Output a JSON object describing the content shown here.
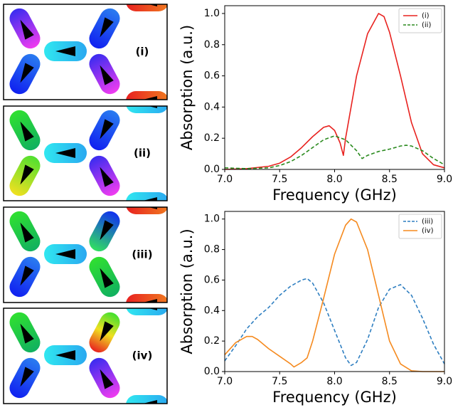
{
  "panels": [
    {
      "label": "(i)"
    },
    {
      "label": "(ii)"
    },
    {
      "label": "(iii)"
    },
    {
      "label": "(iv)"
    }
  ],
  "chart_data": [
    {
      "type": "line",
      "xlabel": "Frequency (GHz)",
      "ylabel": "Absorption (a.u.)",
      "xlim": [
        7.0,
        9.0
      ],
      "ylim": [
        0,
        1.05
      ],
      "xticks": [
        {
          "value": 7.0,
          "label": "7.0"
        },
        {
          "value": 7.5,
          "label": "7.5"
        },
        {
          "value": 8.0,
          "label": "8.0"
        },
        {
          "value": 8.5,
          "label": "8.5"
        },
        {
          "value": 9.0,
          "label": "9.0"
        }
      ],
      "yticks": [
        {
          "value": 0,
          "label": "0.0"
        },
        {
          "value": 0.2,
          "label": "0.2"
        },
        {
          "value": 0.4,
          "label": "0.4"
        },
        {
          "value": 0.6,
          "label": "0.6"
        },
        {
          "value": 0.8,
          "label": "0.8"
        },
        {
          "value": 1.0,
          "label": "1.0"
        }
      ],
      "legend": "upper right",
      "series": [
        {
          "name": "(i)",
          "color": "#e8221f",
          "linestyle": "solid",
          "x": [
            7.0,
            7.2,
            7.4,
            7.5,
            7.6,
            7.7,
            7.8,
            7.9,
            7.95,
            8.0,
            8.05,
            8.08,
            8.1,
            8.15,
            8.2,
            8.3,
            8.4,
            8.45,
            8.5,
            8.6,
            8.7,
            8.8,
            8.9,
            9.0
          ],
          "values": [
            0.0,
            0.005,
            0.02,
            0.04,
            0.08,
            0.14,
            0.21,
            0.27,
            0.28,
            0.25,
            0.17,
            0.09,
            0.2,
            0.4,
            0.6,
            0.87,
            1.0,
            0.98,
            0.88,
            0.6,
            0.3,
            0.1,
            0.03,
            0.01
          ]
        },
        {
          "name": "(ii)",
          "color": "#2a8a1e",
          "linestyle": "dashed",
          "x": [
            7.0,
            7.2,
            7.4,
            7.5,
            7.6,
            7.7,
            7.8,
            7.9,
            8.0,
            8.1,
            8.2,
            8.25,
            8.3,
            8.4,
            8.5,
            8.6,
            8.65,
            8.7,
            8.8,
            8.9,
            9.0
          ],
          "values": [
            0.01,
            0.005,
            0.01,
            0.025,
            0.05,
            0.09,
            0.14,
            0.19,
            0.215,
            0.19,
            0.12,
            0.07,
            0.09,
            0.115,
            0.13,
            0.15,
            0.155,
            0.15,
            0.12,
            0.07,
            0.03
          ]
        }
      ]
    },
    {
      "type": "line",
      "xlabel": "Frequency (GHz)",
      "ylabel": "Absorption (a.u.)",
      "xlim": [
        7.0,
        9.0
      ],
      "ylim": [
        0,
        1.05
      ],
      "xticks": [
        {
          "value": 7.0,
          "label": "7.0"
        },
        {
          "value": 7.5,
          "label": "7.5"
        },
        {
          "value": 8.0,
          "label": "8.0"
        },
        {
          "value": 8.5,
          "label": "8.5"
        },
        {
          "value": 9.0,
          "label": "9.0"
        }
      ],
      "yticks": [
        {
          "value": 0,
          "label": "0.0"
        },
        {
          "value": 0.2,
          "label": "0.2"
        },
        {
          "value": 0.4,
          "label": "0.4"
        },
        {
          "value": 0.6,
          "label": "0.6"
        },
        {
          "value": 0.8,
          "label": "0.8"
        },
        {
          "value": 1.0,
          "label": "1.0"
        }
      ],
      "legend": "upper right",
      "series": [
        {
          "name": "(iii)",
          "color": "#2f7fc1",
          "linestyle": "dashed",
          "x": [
            7.0,
            7.1,
            7.2,
            7.3,
            7.4,
            7.5,
            7.6,
            7.7,
            7.75,
            7.8,
            7.9,
            8.0,
            8.1,
            8.15,
            8.2,
            8.3,
            8.4,
            8.5,
            8.6,
            8.7,
            8.8,
            8.9,
            9.0
          ],
          "values": [
            0.07,
            0.17,
            0.28,
            0.36,
            0.42,
            0.5,
            0.56,
            0.6,
            0.61,
            0.58,
            0.45,
            0.27,
            0.09,
            0.04,
            0.06,
            0.21,
            0.42,
            0.54,
            0.57,
            0.5,
            0.35,
            0.18,
            0.05
          ]
        },
        {
          "name": "(iv)",
          "color": "#f58a1f",
          "linestyle": "solid",
          "x": [
            7.0,
            7.1,
            7.2,
            7.25,
            7.3,
            7.4,
            7.5,
            7.6,
            7.63,
            7.7,
            7.75,
            7.8,
            7.9,
            8.0,
            8.1,
            8.15,
            8.2,
            8.3,
            8.4,
            8.5,
            8.6,
            8.7,
            8.8,
            9.0
          ],
          "values": [
            0.11,
            0.19,
            0.23,
            0.23,
            0.21,
            0.15,
            0.1,
            0.05,
            0.03,
            0.06,
            0.09,
            0.2,
            0.48,
            0.77,
            0.96,
            1.0,
            0.98,
            0.8,
            0.5,
            0.2,
            0.05,
            0.005,
            0.0,
            0.0
          ]
        }
      ]
    }
  ]
}
